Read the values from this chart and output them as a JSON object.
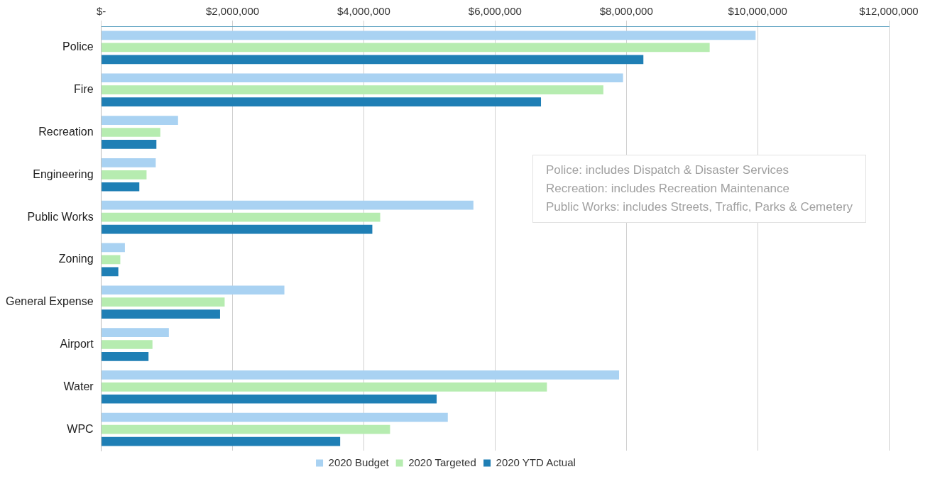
{
  "chart_data": {
    "type": "bar",
    "orientation": "horizontal",
    "categories": [
      "Police",
      "Fire",
      "Recreation",
      "Engineering",
      "Public Works",
      "Zoning",
      "General Expense",
      "Airport",
      "Water",
      "WPC"
    ],
    "series": [
      {
        "name": "2020 Budget",
        "color": "#a9d2f2",
        "values": [
          9970000,
          7950000,
          1170000,
          830000,
          5670000,
          360000,
          2790000,
          1030000,
          7890000,
          5280000
        ]
      },
      {
        "name": "2020 Targeted",
        "color": "#b6ecb0",
        "values": [
          9270000,
          7650000,
          900000,
          690000,
          4250000,
          290000,
          1880000,
          780000,
          6790000,
          4400000
        ]
      },
      {
        "name": "2020 YTD Actual",
        "color": "#1f7fb5",
        "values": [
          8260000,
          6700000,
          840000,
          580000,
          4130000,
          260000,
          1810000,
          720000,
          5110000,
          3640000
        ]
      }
    ],
    "xlim": [
      0,
      12000000
    ],
    "xticks": [
      {
        "value": 0,
        "label": "$-"
      },
      {
        "value": 2000000,
        "label": "$2,000,000"
      },
      {
        "value": 4000000,
        "label": "$4,000,000"
      },
      {
        "value": 6000000,
        "label": "$6,000,000"
      },
      {
        "value": 8000000,
        "label": "$8,000,000"
      },
      {
        "value": 10000000,
        "label": "$10,000,000"
      },
      {
        "value": 12000000,
        "label": "$12,000,000"
      }
    ],
    "grid": "x",
    "legend": "bottom",
    "annotations": [
      "Police:  includes Dispatch & Disaster Services",
      "Recreation:  includes Recreation Maintenance",
      "Public Works:  includes Streets, Traffic, Parks & Cemetery"
    ]
  }
}
